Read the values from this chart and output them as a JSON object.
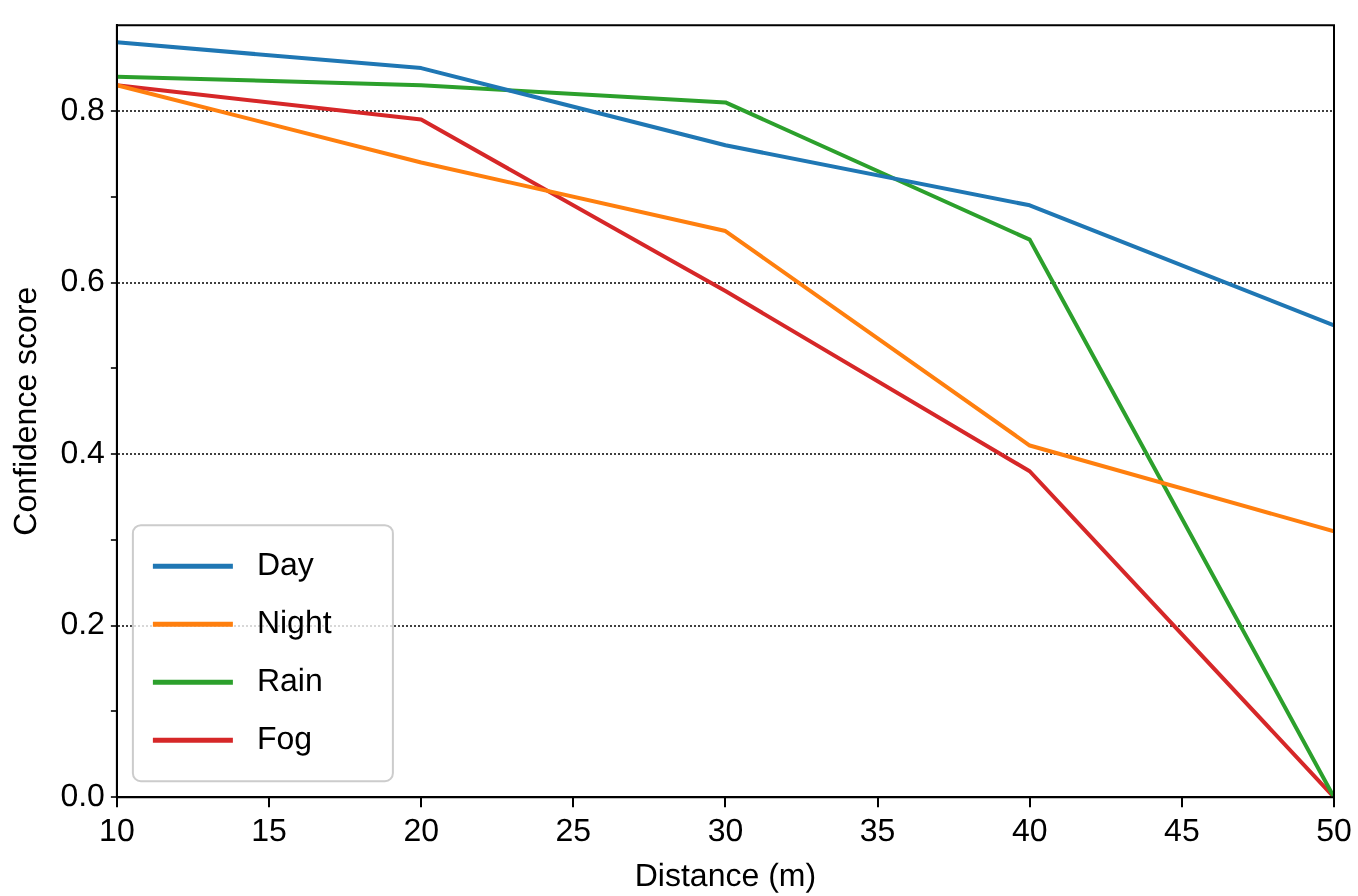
{
  "chart_data": {
    "type": "line",
    "xlabel": "Distance (m)",
    "ylabel": "Confidence score",
    "x": [
      10,
      20,
      30,
      40,
      50
    ],
    "series": [
      {
        "name": "Day",
        "color": "#1f77b4",
        "values": [
          0.88,
          0.85,
          0.76,
          0.69,
          0.55
        ]
      },
      {
        "name": "Night",
        "color": "#ff7f0e",
        "values": [
          0.83,
          0.74,
          0.66,
          0.41,
          0.31
        ]
      },
      {
        "name": "Rain",
        "color": "#2ca02c",
        "values": [
          0.84,
          0.83,
          0.81,
          0.65,
          0.0
        ]
      },
      {
        "name": "Fog",
        "color": "#d62728",
        "values": [
          0.83,
          0.79,
          0.59,
          0.38,
          0.0
        ]
      }
    ],
    "xlim": [
      10,
      50
    ],
    "xticks": [
      10,
      15,
      20,
      25,
      30,
      35,
      40,
      45,
      50
    ],
    "ylim": [
      0,
      0.9
    ],
    "yticks": [
      {
        "value": 0,
        "label": "0.0"
      },
      {
        "value": 0.1,
        "label": null
      },
      {
        "value": 0.2,
        "label": "0.2"
      },
      {
        "value": 0.3,
        "label": null
      },
      {
        "value": 0.4,
        "label": "0.4"
      },
      {
        "value": 0.5,
        "label": null
      },
      {
        "value": 0.6,
        "label": "0.6"
      },
      {
        "value": 0.7,
        "label": null
      },
      {
        "value": 0.8,
        "label": "0.8"
      }
    ],
    "grid": "y",
    "legend": "bottom left",
    "marker": "none",
    "line_style": "solid"
  }
}
